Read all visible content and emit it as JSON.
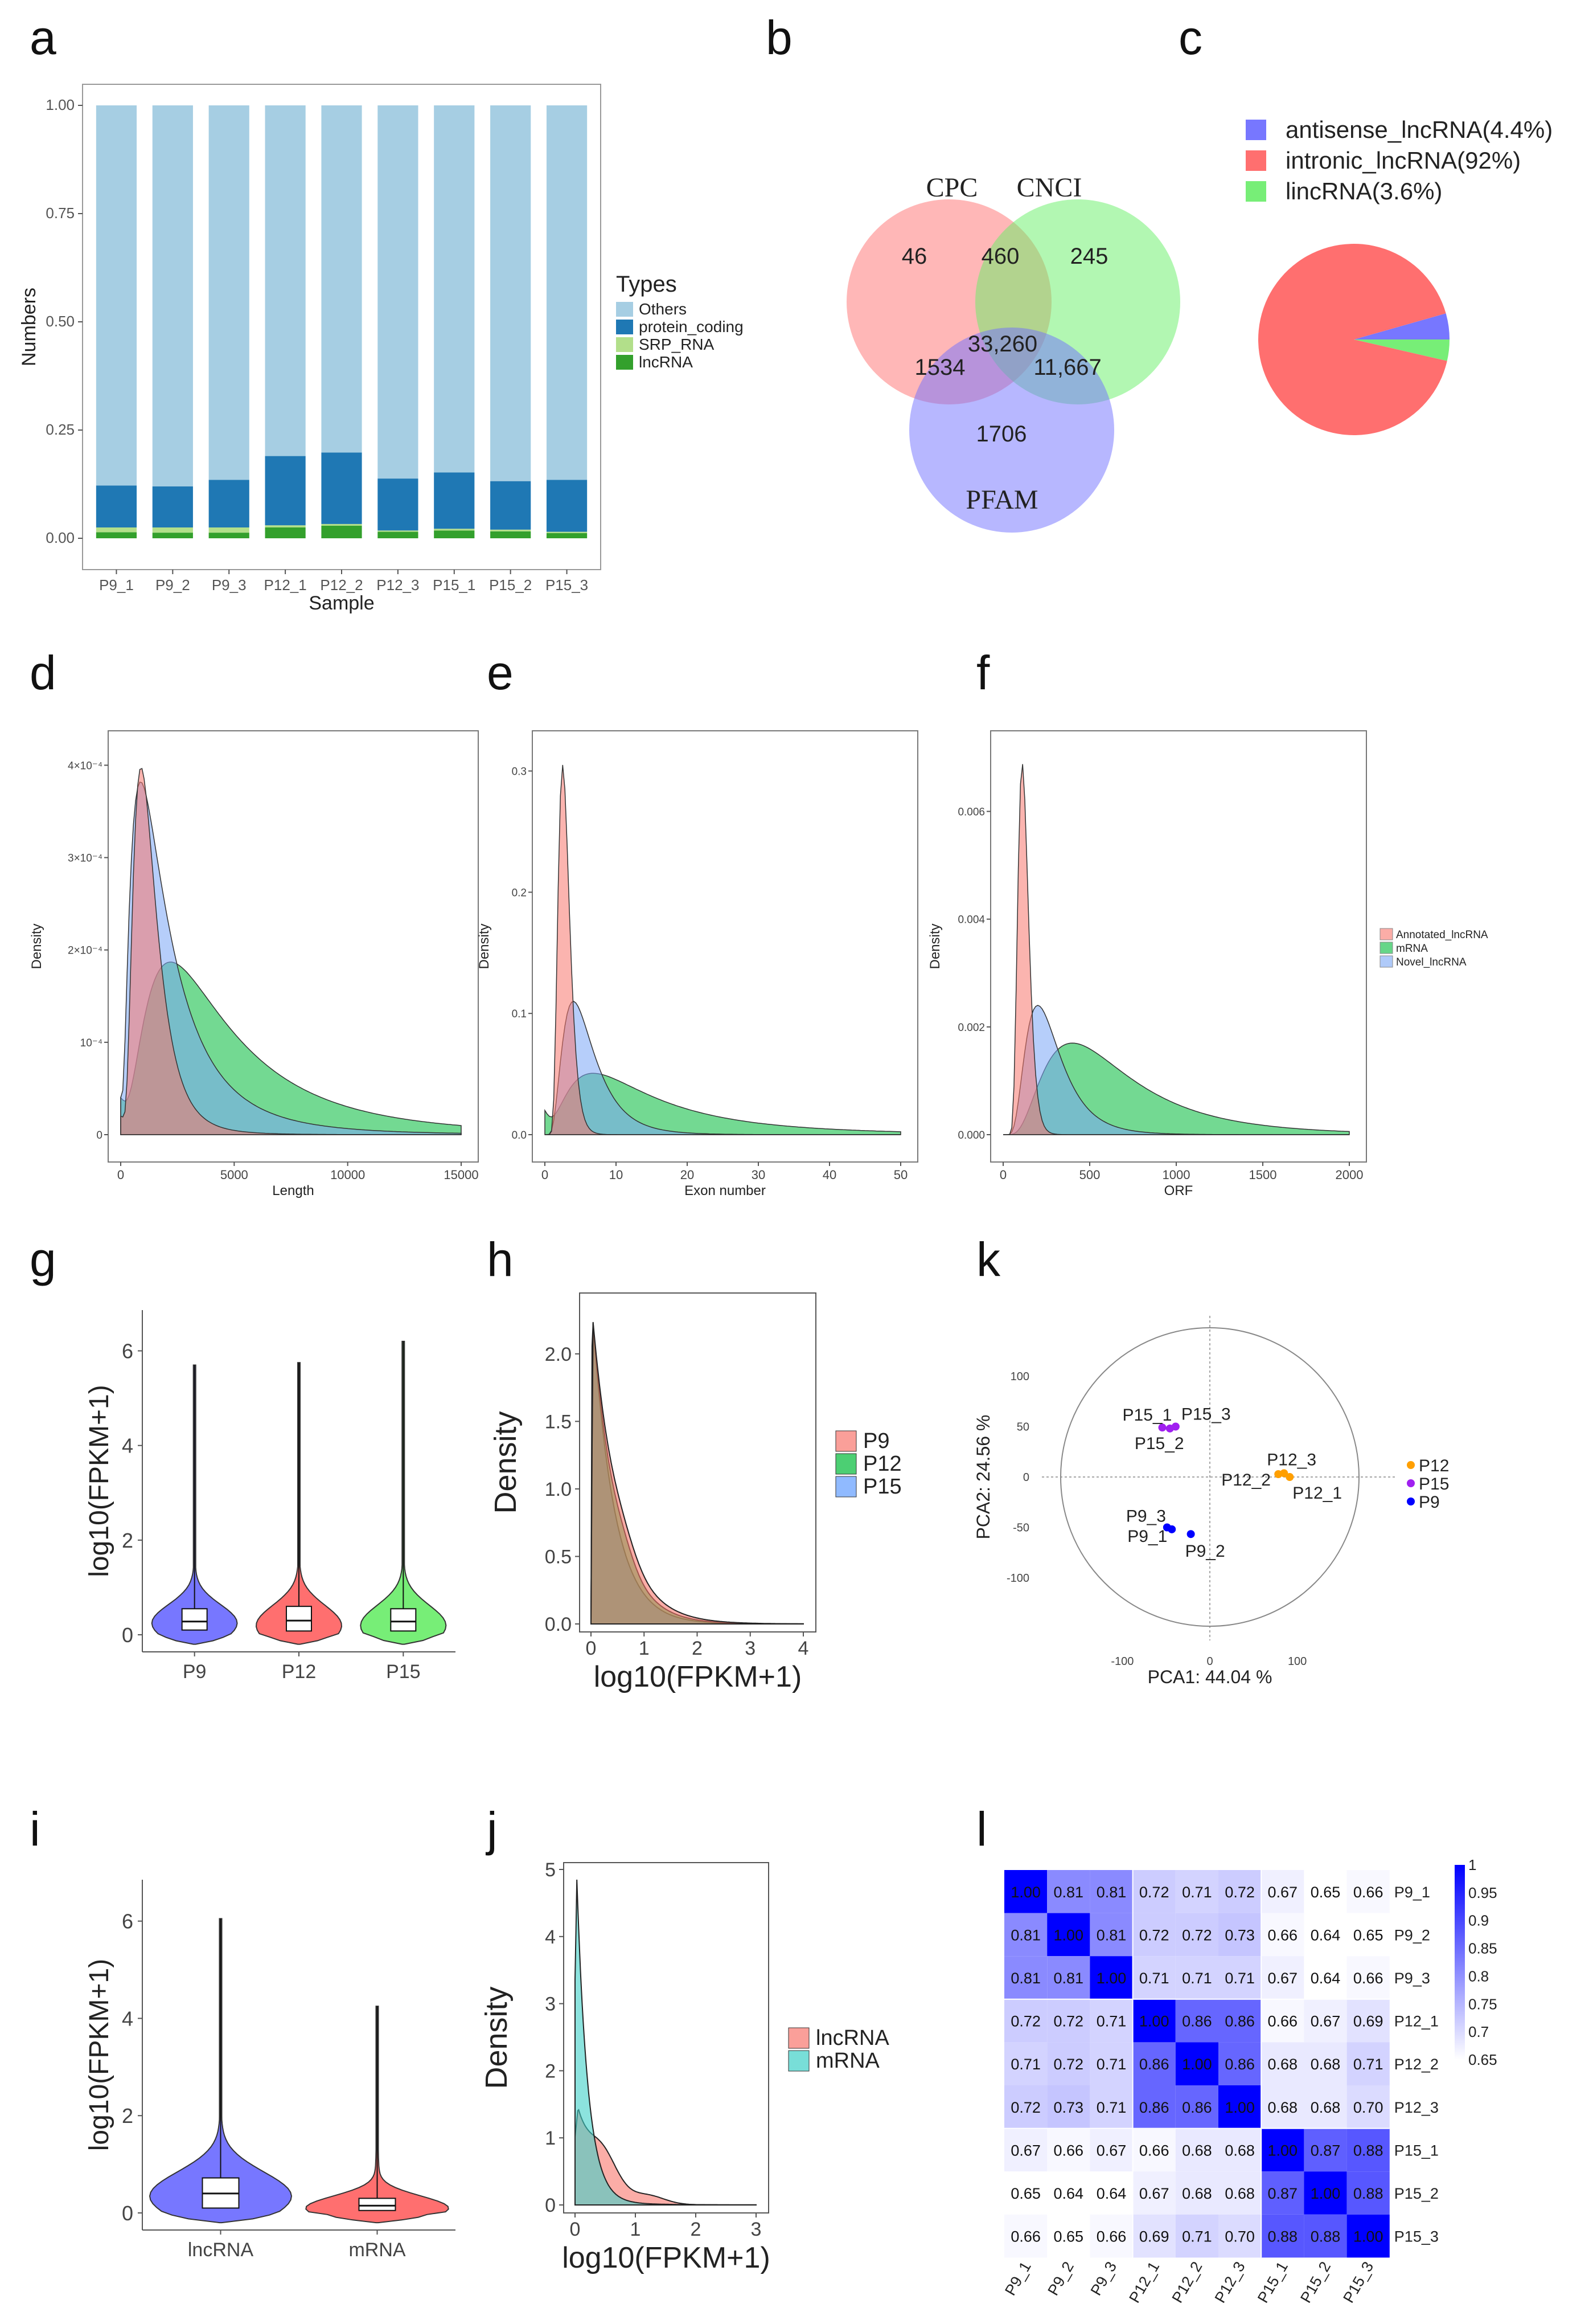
{
  "panel_labels": [
    "a",
    "b",
    "c",
    "d",
    "e",
    "f",
    "g",
    "h",
    "k",
    "i",
    "j",
    "l"
  ],
  "chart_data": [
    {
      "id": "a",
      "type": "bar",
      "stacked": true,
      "xlabel": "Sample",
      "ylabel": "Numbers",
      "ylim": [
        0,
        1
      ],
      "yticks": [
        "0.00",
        "0.25",
        "0.50",
        "0.75",
        "1.00"
      ],
      "legend_title": "Types",
      "legend_position": "right",
      "categories": [
        "P9_1",
        "P9_2",
        "P9_3",
        "P12_1",
        "P12_2",
        "P12_3",
        "P15_1",
        "P15_2",
        "P15_3"
      ],
      "series": [
        {
          "name": "Others",
          "color": "#a6cee3",
          "values": [
            0.878,
            0.88,
            0.865,
            0.81,
            0.802,
            0.862,
            0.848,
            0.868,
            0.865
          ]
        },
        {
          "name": "protein_coding",
          "color": "#1f78b4",
          "values": [
            0.097,
            0.095,
            0.11,
            0.16,
            0.165,
            0.12,
            0.13,
            0.112,
            0.12
          ]
        },
        {
          "name": "SRP_RNA",
          "color": "#b2df8a",
          "values": [
            0.011,
            0.012,
            0.012,
            0.005,
            0.004,
            0.003,
            0.004,
            0.004,
            0.003
          ]
        },
        {
          "name": "lncRNA",
          "color": "#33a02c",
          "values": [
            0.014,
            0.013,
            0.013,
            0.025,
            0.029,
            0.015,
            0.018,
            0.016,
            0.012
          ]
        }
      ]
    },
    {
      "id": "b",
      "type": "venn",
      "sets": [
        {
          "name": "CPC",
          "color": "#ff6f6f"
        },
        {
          "name": "CNCI",
          "color": "#66f066"
        },
        {
          "name": "PFAM",
          "color": "#6f6fff"
        }
      ],
      "regions": [
        {
          "sets": "CPC only",
          "value": "46"
        },
        {
          "sets": "CPC∩CNCI",
          "value": "460"
        },
        {
          "sets": "CNCI only",
          "value": "245"
        },
        {
          "sets": "CPC∩CNCI∩PFAM",
          "value": "33,260"
        },
        {
          "sets": "CPC∩PFAM",
          "value": "1534"
        },
        {
          "sets": "CNCI∩PFAM",
          "value": "11,667"
        },
        {
          "sets": "PFAM only",
          "value": "1706"
        }
      ]
    },
    {
      "id": "c",
      "type": "pie",
      "slices": [
        {
          "label": "antisense_lncRNA(4.4%)",
          "value": 4.4,
          "color": "#7777ff"
        },
        {
          "label": "intronic_lncRNA(92%)",
          "value": 92,
          "color": "#ff6f6f"
        },
        {
          "label": "lincRNA(3.6%)",
          "value": 3.6,
          "color": "#77ee77"
        }
      ]
    },
    {
      "id": "d",
      "type": "area",
      "xlabel": "Length",
      "ylabel": "Density",
      "xlim": [
        0,
        15000
      ],
      "ylim": [
        0,
        0.00042
      ],
      "xticks": [
        "0",
        "5000",
        "10000",
        "15000"
      ],
      "yticks": [
        "0",
        "10⁻⁴",
        "2×10⁻⁴",
        "3×10⁻⁴",
        "4×10⁻⁴"
      ],
      "series": [
        {
          "name": "Annotated_lncRNA",
          "peak_x": 900,
          "peak_y": 0.000385
        },
        {
          "name": "mRNA",
          "peak_x": 2300,
          "peak_y": 0.000178
        },
        {
          "name": "Novel_lncRNA",
          "peak_x": 900,
          "peak_y": 0.00036
        }
      ]
    },
    {
      "id": "e",
      "type": "area",
      "xlabel": "Exon number",
      "ylabel": "Density",
      "xlim": [
        0,
        50
      ],
      "ylim": [
        0,
        0.32
      ],
      "xticks": [
        "0",
        "10",
        "20",
        "30",
        "40",
        "50"
      ],
      "yticks": [
        "0.0",
        "0.1",
        "0.2",
        "0.3"
      ],
      "series": [
        {
          "name": "Annotated_lncRNA",
          "peak_x": 2.5,
          "peak_y": 0.305
        },
        {
          "name": "mRNA",
          "peak_x": 7,
          "peak_y": 0.05
        },
        {
          "name": "Novel_lncRNA",
          "peak_x": 4,
          "peak_y": 0.11
        }
      ]
    },
    {
      "id": "f",
      "type": "area",
      "xlabel": "ORF",
      "ylabel": "Density",
      "xlim": [
        0,
        2000
      ],
      "ylim": [
        0,
        0.0072
      ],
      "xticks": [
        "0",
        "500",
        "1000",
        "1500",
        "2000"
      ],
      "yticks": [
        "0.000",
        "0.002",
        "0.004",
        "0.006"
      ],
      "legend": [
        "Annotated_lncRNA",
        "mRNA",
        "Novel_lncRNA"
      ],
      "series": [
        {
          "name": "Annotated_lncRNA",
          "peak_x": 110,
          "peak_y": 0.0069
        },
        {
          "name": "mRNA",
          "peak_x": 400,
          "peak_y": 0.0017
        },
        {
          "name": "Novel_lncRNA",
          "peak_x": 200,
          "peak_y": 0.0024
        }
      ]
    },
    {
      "id": "g",
      "type": "violin",
      "ylabel": "log10(FPKM+1)",
      "ylim": [
        0,
        6.5
      ],
      "yticks": [
        "0",
        "2",
        "4",
        "6"
      ],
      "categories": [
        "P9",
        "P12",
        "P15"
      ],
      "colors": [
        "#7777ff",
        "#ff6f6f",
        "#77ee77"
      ],
      "max": [
        5.7,
        5.75,
        6.2
      ],
      "median": [
        0.28,
        0.3,
        0.28
      ]
    },
    {
      "id": "h",
      "type": "area",
      "xlabel": "log10(FPKM+1)",
      "ylabel": "Density",
      "xlim": [
        0,
        4
      ],
      "ylim": [
        0,
        2.4
      ],
      "xticks": [
        "0",
        "1",
        "2",
        "3",
        "4"
      ],
      "yticks": [
        "0.0",
        "0.5",
        "1.0",
        "1.5",
        "2.0"
      ],
      "series": [
        {
          "name": "P9",
          "color": "#f8766d",
          "peak_y": 2.25
        },
        {
          "name": "P12",
          "color": "#00ba38",
          "peak_y": 2.25
        },
        {
          "name": "P15",
          "color": "#619cff",
          "peak_y": 2.25
        }
      ]
    },
    {
      "id": "k",
      "type": "scatter",
      "xlabel": "PCA1: 44.04 %",
      "ylabel": "PCA2: 24.56 %",
      "xticks": [
        "-100",
        "0",
        "100"
      ],
      "yticks": [
        "-100",
        "-50",
        "0",
        "50",
        "100"
      ],
      "series": [
        {
          "name": "P12",
          "color": "#ff9f00",
          "points": [
            {
              "label": "P12_3",
              "x": 78,
              "y": 4
            },
            {
              "label": "P12_2",
              "x": 72,
              "y": 3
            },
            {
              "label": "P12_1",
              "x": 84,
              "y": 0
            }
          ]
        },
        {
          "name": "P15",
          "color": "#a020f0",
          "points": [
            {
              "label": "P15_1",
              "x": -50,
              "y": 52
            },
            {
              "label": "P15_3",
              "x": -36,
              "y": 53
            },
            {
              "label": "P15_2",
              "x": -42,
              "y": 51
            }
          ]
        },
        {
          "name": "P9",
          "color": "#0000ff",
          "points": [
            {
              "label": "P9_3",
              "x": -45,
              "y": -53
            },
            {
              "label": "P9_1",
              "x": -40,
              "y": -55
            },
            {
              "label": "P9_2",
              "x": -20,
              "y": -60
            }
          ]
        }
      ]
    },
    {
      "id": "i",
      "type": "violin",
      "ylabel": "log10(FPKM+1)",
      "ylim": [
        0,
        6.5
      ],
      "yticks": [
        "0",
        "2",
        "4",
        "6"
      ],
      "categories": [
        "lncRNA",
        "mRNA"
      ],
      "colors": [
        "#7777ff",
        "#ff6f6f"
      ],
      "max": [
        6.05,
        4.25
      ],
      "median": [
        0.4,
        0.15
      ]
    },
    {
      "id": "j",
      "type": "area",
      "xlabel": "log10(FPKM+1)",
      "ylabel": "Density",
      "xlim": [
        0,
        3
      ],
      "ylim": [
        0,
        5
      ],
      "xticks": [
        "0",
        "1",
        "2",
        "3"
      ],
      "yticks": [
        "0",
        "1",
        "2",
        "3",
        "4",
        "5"
      ],
      "series": [
        {
          "name": "lncRNA",
          "color": "#f8766d",
          "peak_y": 1.3
        },
        {
          "name": "mRNA",
          "color": "#3fd0c8",
          "peak_y": 4.8
        }
      ]
    },
    {
      "id": "l",
      "type": "heatmap",
      "value_range": [
        0.65,
        1
      ],
      "colorbar_ticks": [
        "1",
        "0.95",
        "0.9",
        "0.85",
        "0.8",
        "0.75",
        "0.7",
        "0.65"
      ],
      "labels": [
        "P9_1",
        "P9_2",
        "P9_3",
        "P12_1",
        "P12_2",
        "P12_3",
        "P15_1",
        "P15_2",
        "P15_3"
      ],
      "matrix": [
        [
          "1.00",
          "0.81",
          "0.81",
          "0.72",
          "0.71",
          "0.72",
          "0.67",
          "0.65",
          "0.66"
        ],
        [
          "0.81",
          "1.00",
          "0.81",
          "0.72",
          "0.72",
          "0.73",
          "0.66",
          "0.64",
          "0.65"
        ],
        [
          "0.81",
          "0.81",
          "1.00",
          "0.71",
          "0.71",
          "0.71",
          "0.67",
          "0.64",
          "0.66"
        ],
        [
          "0.72",
          "0.72",
          "0.71",
          "1.00",
          "0.86",
          "0.86",
          "0.66",
          "0.67",
          "0.69"
        ],
        [
          "0.71",
          "0.72",
          "0.71",
          "0.86",
          "1.00",
          "0.86",
          "0.68",
          "0.68",
          "0.71"
        ],
        [
          "0.72",
          "0.73",
          "0.71",
          "0.86",
          "0.86",
          "1.00",
          "0.68",
          "0.68",
          "0.70"
        ],
        [
          "0.67",
          "0.66",
          "0.67",
          "0.66",
          "0.68",
          "0.68",
          "1.00",
          "0.87",
          "0.88"
        ],
        [
          "0.65",
          "0.64",
          "0.64",
          "0.67",
          "0.68",
          "0.68",
          "0.87",
          "1.00",
          "0.88"
        ],
        [
          "0.66",
          "0.65",
          "0.66",
          "0.69",
          "0.71",
          "0.70",
          "0.88",
          "0.88",
          "1.00"
        ]
      ]
    }
  ]
}
